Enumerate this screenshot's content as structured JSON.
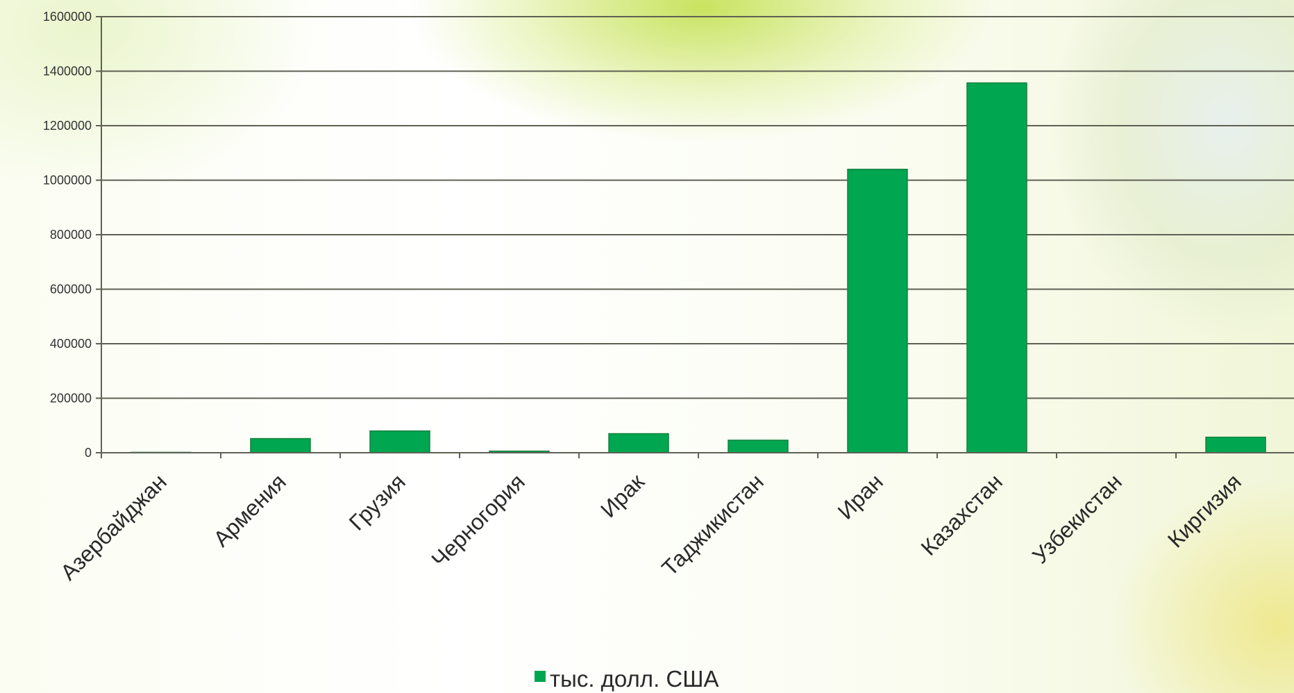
{
  "chart_data": {
    "type": "bar",
    "categories": [
      "Азербайджан",
      "Армения",
      "Грузия",
      "Черногория",
      "Ирак",
      "Таджикистан",
      "Иран",
      "Казахстан",
      "Узбекистан",
      "Киргизия"
    ],
    "series": [
      {
        "name": "тыс. долл. США",
        "values": [
          1500,
          52000,
          80000,
          6000,
          70000,
          46000,
          1040000,
          1357000,
          0,
          57000
        ],
        "color": "#00a650"
      }
    ],
    "yticks": [
      "0",
      "200000",
      "400000",
      "600000",
      "800000",
      "1000000",
      "1200000",
      "1400000",
      "1600000"
    ],
    "ylim": [
      0,
      1600000
    ],
    "grid": true,
    "legend": "bottom-center",
    "title": "",
    "xlabel": "",
    "ylabel": ""
  }
}
